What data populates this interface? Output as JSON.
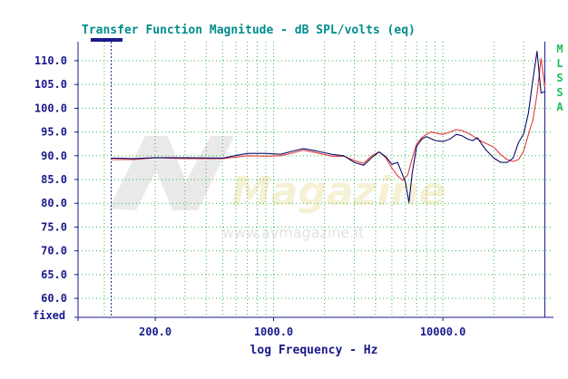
{
  "chart_data": {
    "type": "line",
    "title": "Transfer Function Magnitude - dB SPL/volts (eq)",
    "xlabel": "log Frequency - Hz",
    "ylabel": "",
    "x_scale": "log",
    "xlim": [
      70,
      45000
    ],
    "ylim": [
      56,
      114
    ],
    "y_ticks": [
      60,
      65,
      70,
      75,
      80,
      85,
      90,
      95,
      100,
      105,
      110
    ],
    "y_tick_labels": [
      "60.0",
      "65.0",
      "70.0",
      "75.0",
      "80.0",
      "85.0",
      "90.0",
      "95.0",
      "100.0",
      "105.0",
      "110.0"
    ],
    "y_bottom_label": "fixed",
    "x_tick_labels": [
      {
        "value": 200,
        "label": "200.0"
      },
      {
        "value": 1000,
        "label": "1000.0"
      },
      {
        "value": 10000,
        "label": "10000.0"
      }
    ],
    "grid": true,
    "cursors_hz": [
      110,
      40000
    ],
    "legend_letters": [
      "M",
      "L",
      "S",
      "S",
      "A"
    ],
    "watermark": {
      "brand": "Magazine",
      "url": "www.avmagazine.it"
    },
    "colors": {
      "title": "#008c8c",
      "axis": "#1a1a8c",
      "grid": "#2ab84a",
      "series_red": "#e23a3a",
      "series_blue": "#0b0b6e",
      "legend": "#19c05a",
      "cursor": "#1a1a8c"
    },
    "series": [
      {
        "color": "#e23a3a",
        "x": [
          110,
          150,
          200,
          300,
          500,
          700,
          900,
          1100,
          1300,
          1500,
          1800,
          2200,
          2600,
          3000,
          3400,
          3800,
          4200,
          4600,
          5000,
          5400,
          5800,
          6200,
          6600,
          7000,
          7500,
          8000,
          8500,
          9000,
          10000,
          11000,
          12000,
          13000,
          14000,
          15000,
          16000,
          17000,
          18000,
          20000,
          22000,
          24000,
          26000,
          28000,
          30000,
          32000,
          34000,
          36000,
          38000,
          40000
        ],
        "y": [
          89.2,
          89.2,
          89.6,
          89.4,
          89.4,
          90.0,
          89.9,
          90.0,
          90.6,
          91.2,
          90.6,
          89.9,
          89.9,
          89.0,
          88.4,
          90.0,
          90.8,
          89.6,
          87.4,
          85.8,
          84.8,
          86.0,
          89.5,
          92.5,
          93.8,
          94.5,
          95.0,
          94.8,
          94.5,
          95.0,
          95.5,
          95.3,
          94.8,
          94.2,
          93.5,
          93.0,
          92.6,
          91.8,
          90.2,
          89.2,
          88.8,
          89.2,
          91.0,
          94.5,
          97.5,
          103.0,
          110.5,
          104.5
        ]
      },
      {
        "color": "#0b0b6e",
        "x": [
          110,
          150,
          200,
          300,
          500,
          700,
          900,
          1100,
          1300,
          1500,
          1800,
          2200,
          2600,
          3000,
          3400,
          3800,
          4200,
          4600,
          5000,
          5400,
          5700,
          6000,
          6300,
          6600,
          7000,
          7500,
          8000,
          8500,
          9000,
          10000,
          11000,
          12000,
          13000,
          14000,
          15000,
          16000,
          17000,
          18000,
          20000,
          22000,
          24000,
          26000,
          28000,
          30000,
          32000,
          34000,
          36000,
          38000,
          40000
        ],
        "y": [
          89.5,
          89.4,
          89.6,
          89.6,
          89.5,
          90.5,
          90.5,
          90.3,
          91.0,
          91.5,
          91.0,
          90.3,
          90.0,
          88.6,
          88.0,
          89.6,
          90.8,
          89.8,
          88.2,
          88.6,
          86.5,
          84.5,
          80.2,
          86.5,
          92.0,
          93.5,
          94.0,
          93.6,
          93.2,
          93.0,
          93.5,
          94.5,
          94.2,
          93.5,
          93.2,
          93.8,
          92.4,
          91.2,
          89.5,
          88.6,
          88.6,
          89.5,
          92.8,
          94.6,
          99.0,
          106.0,
          112.0,
          103.2,
          103.5
        ]
      }
    ]
  }
}
